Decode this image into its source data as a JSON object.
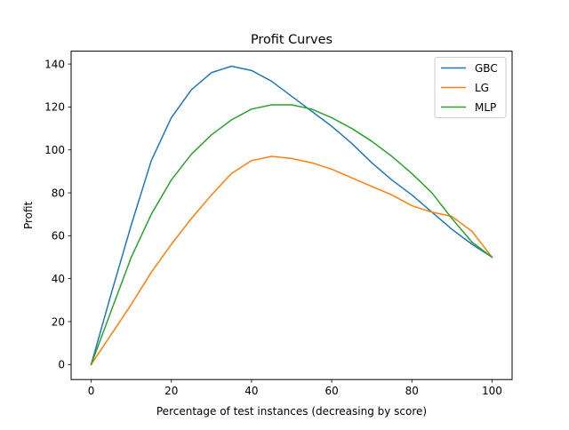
{
  "chart_data": {
    "type": "line",
    "title": "Profit Curves",
    "xlabel": "Percentage of test instances (decreasing by score)",
    "ylabel": "Profit",
    "xlim": [
      -5,
      105
    ],
    "ylim": [
      -7,
      146
    ],
    "xticks": [
      0,
      20,
      40,
      60,
      80,
      100
    ],
    "yticks": [
      0,
      20,
      40,
      60,
      80,
      100,
      120,
      140
    ],
    "grid": false,
    "legend_position": "top-right",
    "series": [
      {
        "name": "GBC",
        "color": "#1f77b4",
        "x": [
          0,
          5,
          10,
          15,
          20,
          25,
          30,
          35,
          40,
          45,
          50,
          55,
          60,
          65,
          70,
          75,
          80,
          85,
          90,
          95,
          100
        ],
        "y": [
          0,
          33,
          65,
          95,
          115,
          128,
          136,
          139,
          137,
          132,
          125,
          118,
          111,
          103,
          94,
          86,
          79,
          71,
          63,
          56,
          50
        ]
      },
      {
        "name": "LG",
        "color": "#ff7f0e",
        "x": [
          0,
          5,
          10,
          15,
          20,
          25,
          30,
          35,
          40,
          45,
          50,
          55,
          60,
          65,
          70,
          75,
          80,
          85,
          90,
          95,
          100
        ],
        "y": [
          0,
          14,
          28,
          43,
          56,
          68,
          79,
          89,
          95,
          97,
          96,
          94,
          91,
          87,
          83,
          79,
          74,
          71,
          69,
          62,
          50
        ]
      },
      {
        "name": "MLP",
        "color": "#2ca02c",
        "x": [
          0,
          5,
          10,
          15,
          20,
          25,
          30,
          35,
          40,
          45,
          50,
          55,
          60,
          65,
          70,
          75,
          80,
          85,
          90,
          95,
          100
        ],
        "y": [
          0,
          25,
          50,
          70,
          86,
          98,
          107,
          114,
          119,
          121,
          121,
          119,
          115,
          110,
          104,
          97,
          89,
          80,
          68,
          57,
          50
        ]
      }
    ]
  }
}
